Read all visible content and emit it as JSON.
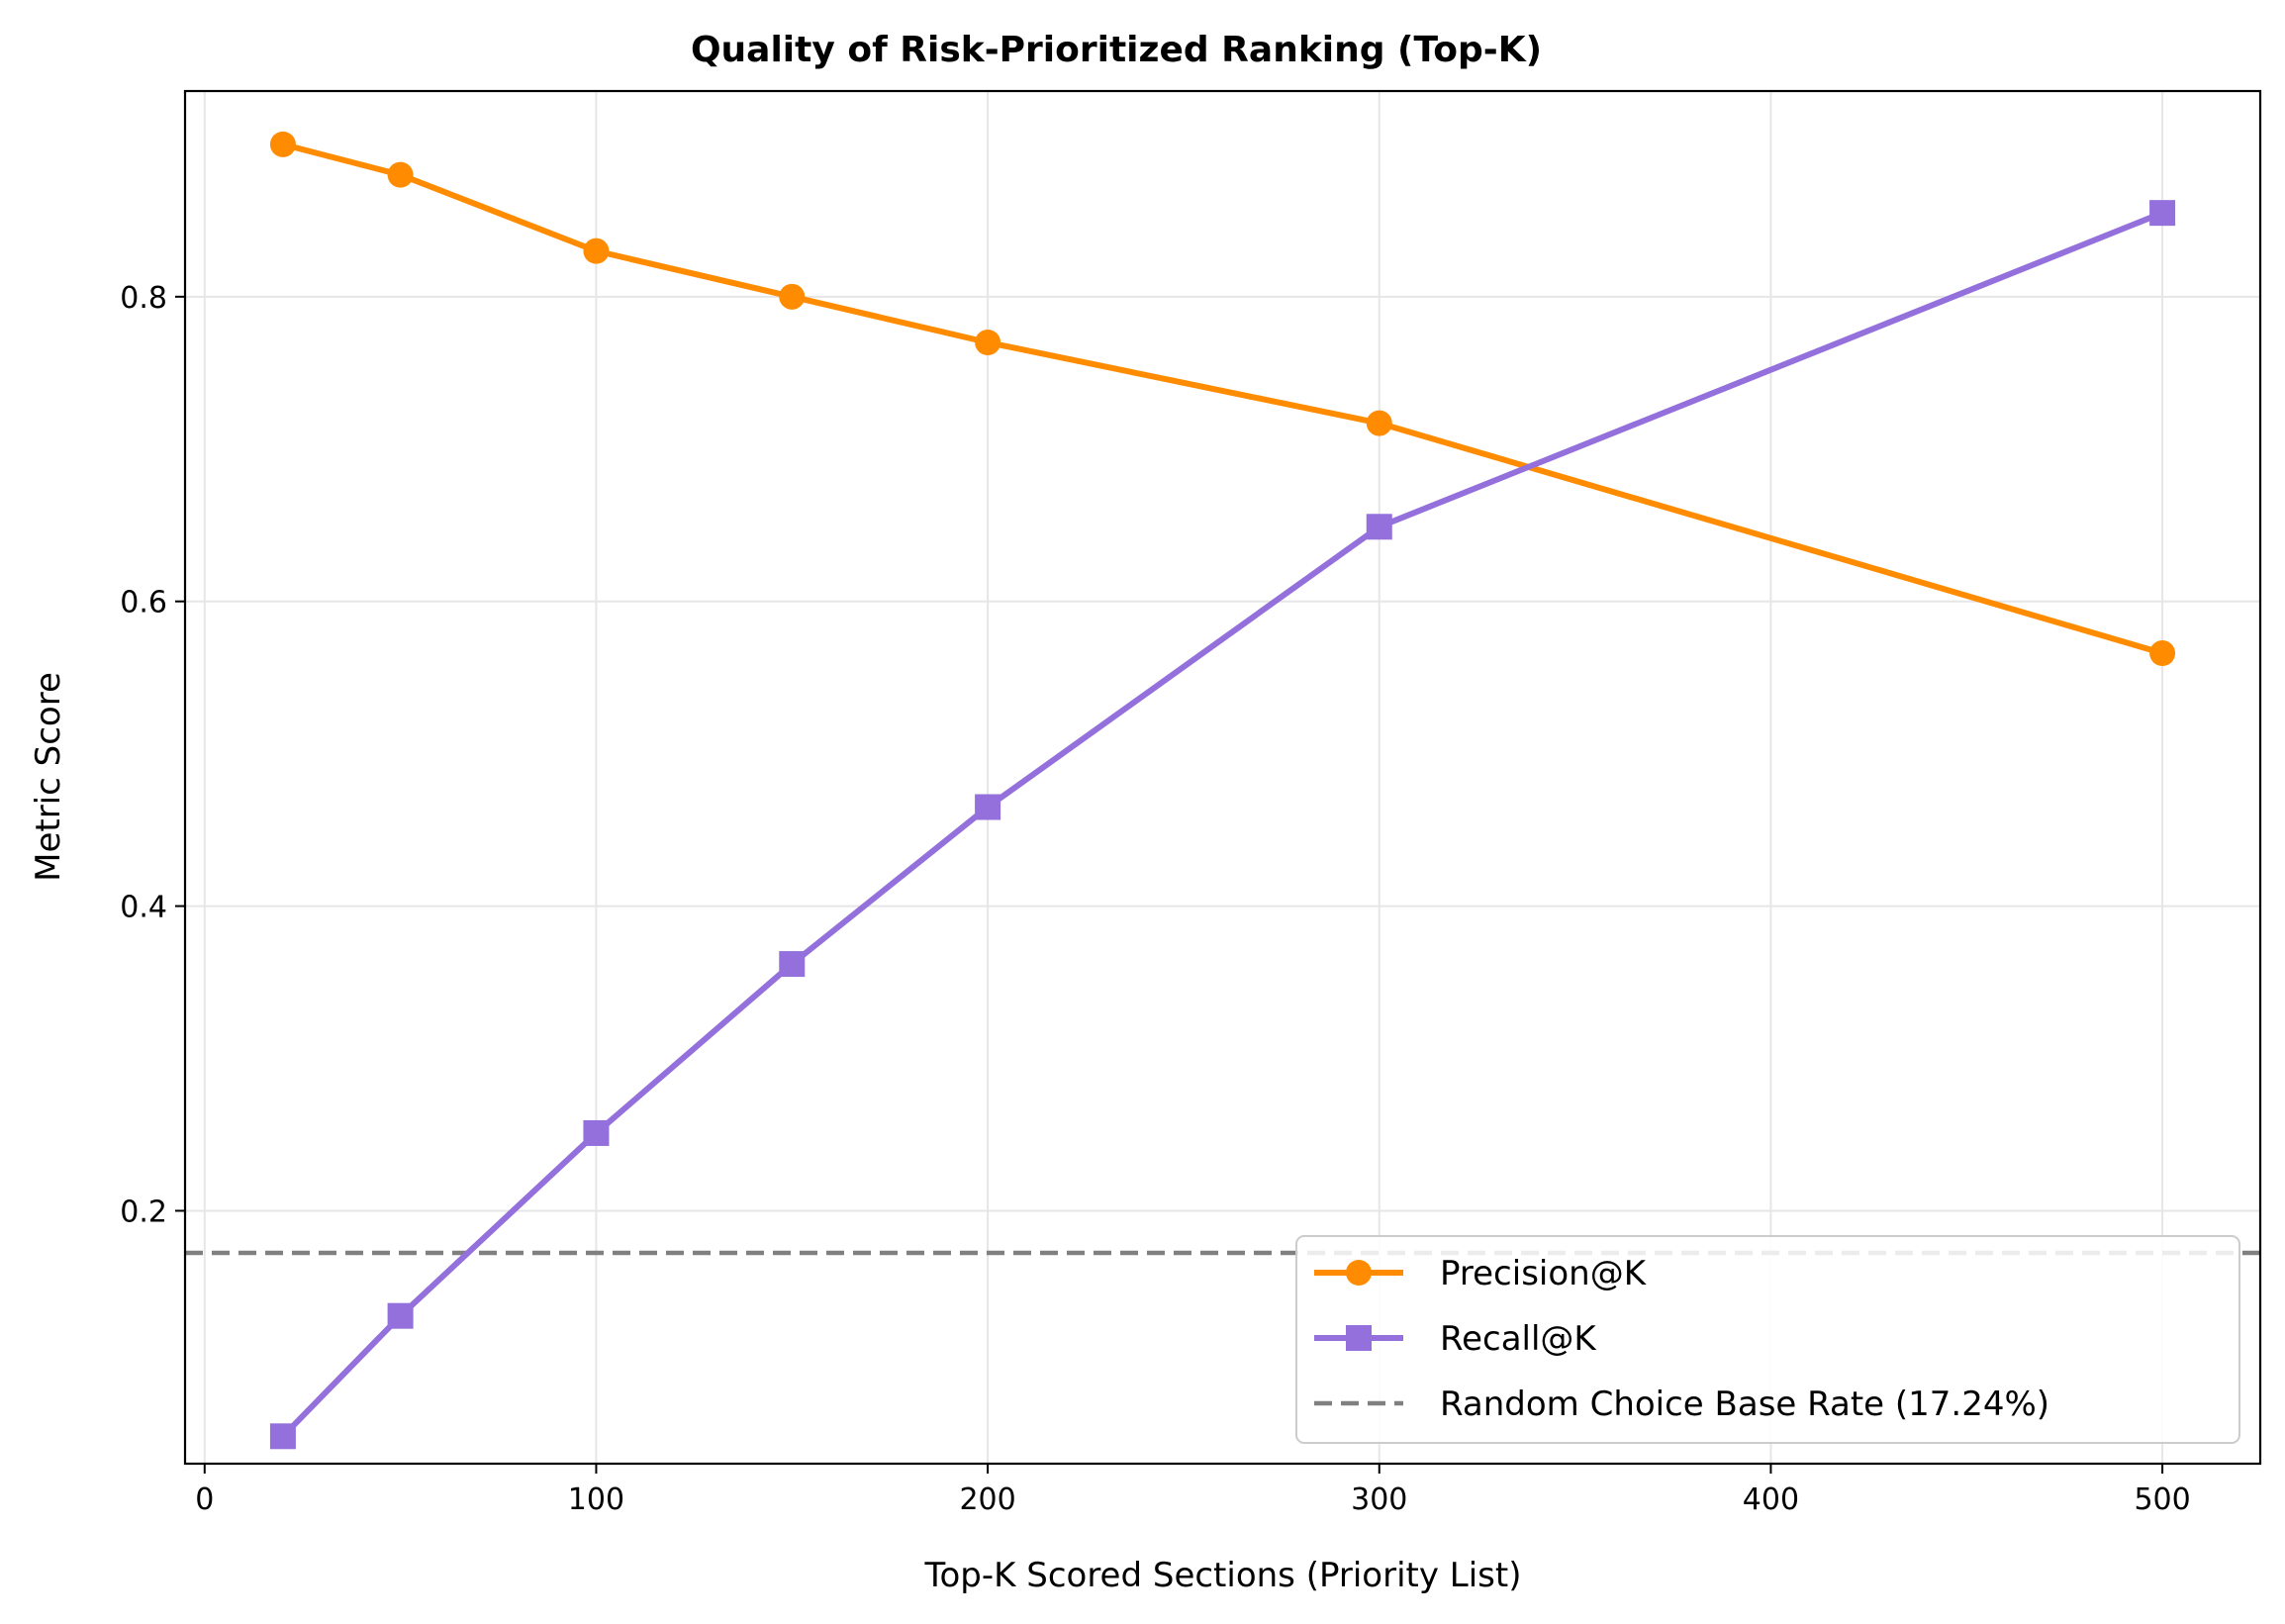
{
  "chart_data": {
    "type": "line",
    "title": "Quality of Risk-Prioritized Ranking (Top-K)",
    "xlabel": "Top-K Scored Sections (Priority List)",
    "ylabel": "Metric Score",
    "xlim": [
      -5,
      525
    ],
    "ylim": [
      0.034,
      0.935
    ],
    "x_ticks": [
      0,
      100,
      200,
      300,
      400,
      500
    ],
    "x_tick_labels": [
      "0",
      "100",
      "200",
      "300",
      "400",
      "500"
    ],
    "y_ticks": [
      0.2,
      0.4,
      0.6,
      0.8
    ],
    "y_tick_labels": [
      "0.2",
      "0.4",
      "0.6",
      "0.8"
    ],
    "grid": true,
    "legend_position": "lower-right",
    "x": [
      20,
      50,
      100,
      150,
      200,
      300,
      500
    ],
    "series": [
      {
        "name": "Precision@K",
        "color": "#ff8c00",
        "marker": "circle",
        "values": [
          0.9,
          0.88,
          0.83,
          0.8,
          0.77,
          0.717,
          0.566
        ]
      },
      {
        "name": "Recall@K",
        "color": "#9370db",
        "marker": "square",
        "values": [
          0.052,
          0.131,
          0.251,
          0.362,
          0.465,
          0.649,
          0.855
        ]
      }
    ],
    "reference_lines": [
      {
        "name": "Random Choice Base Rate (17.24%)",
        "orientation": "horizontal",
        "y": 0.1724,
        "color": "#808080",
        "style": "dashed"
      }
    ]
  }
}
